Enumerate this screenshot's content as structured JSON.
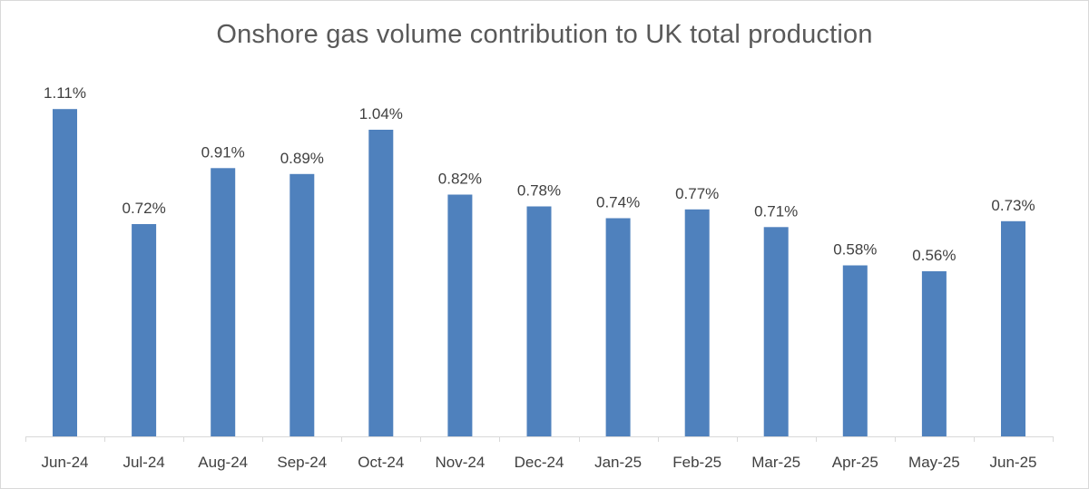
{
  "chart_data": {
    "type": "bar",
    "title": "Onshore gas volume contribution to UK total production",
    "categories": [
      "Jun-24",
      "Jul-24",
      "Aug-24",
      "Sep-24",
      "Oct-24",
      "Nov-24",
      "Dec-24",
      "Jan-25",
      "Feb-25",
      "Mar-25",
      "Apr-25",
      "May-25",
      "Jun-25"
    ],
    "values": [
      1.11,
      0.72,
      0.91,
      0.89,
      1.04,
      0.82,
      0.78,
      0.74,
      0.77,
      0.71,
      0.58,
      0.56,
      0.73
    ],
    "data_labels": [
      "1.11%",
      "0.72%",
      "0.91%",
      "0.89%",
      "1.04%",
      "0.82%",
      "0.78%",
      "0.74%",
      "0.77%",
      "0.71%",
      "0.58%",
      "0.56%",
      "0.73%"
    ],
    "unit": "%",
    "xlabel": "",
    "ylabel": "",
    "ylim": [
      0,
      1.2
    ],
    "grid": false,
    "legend": "none",
    "bar_color": "#4f81bd"
  }
}
